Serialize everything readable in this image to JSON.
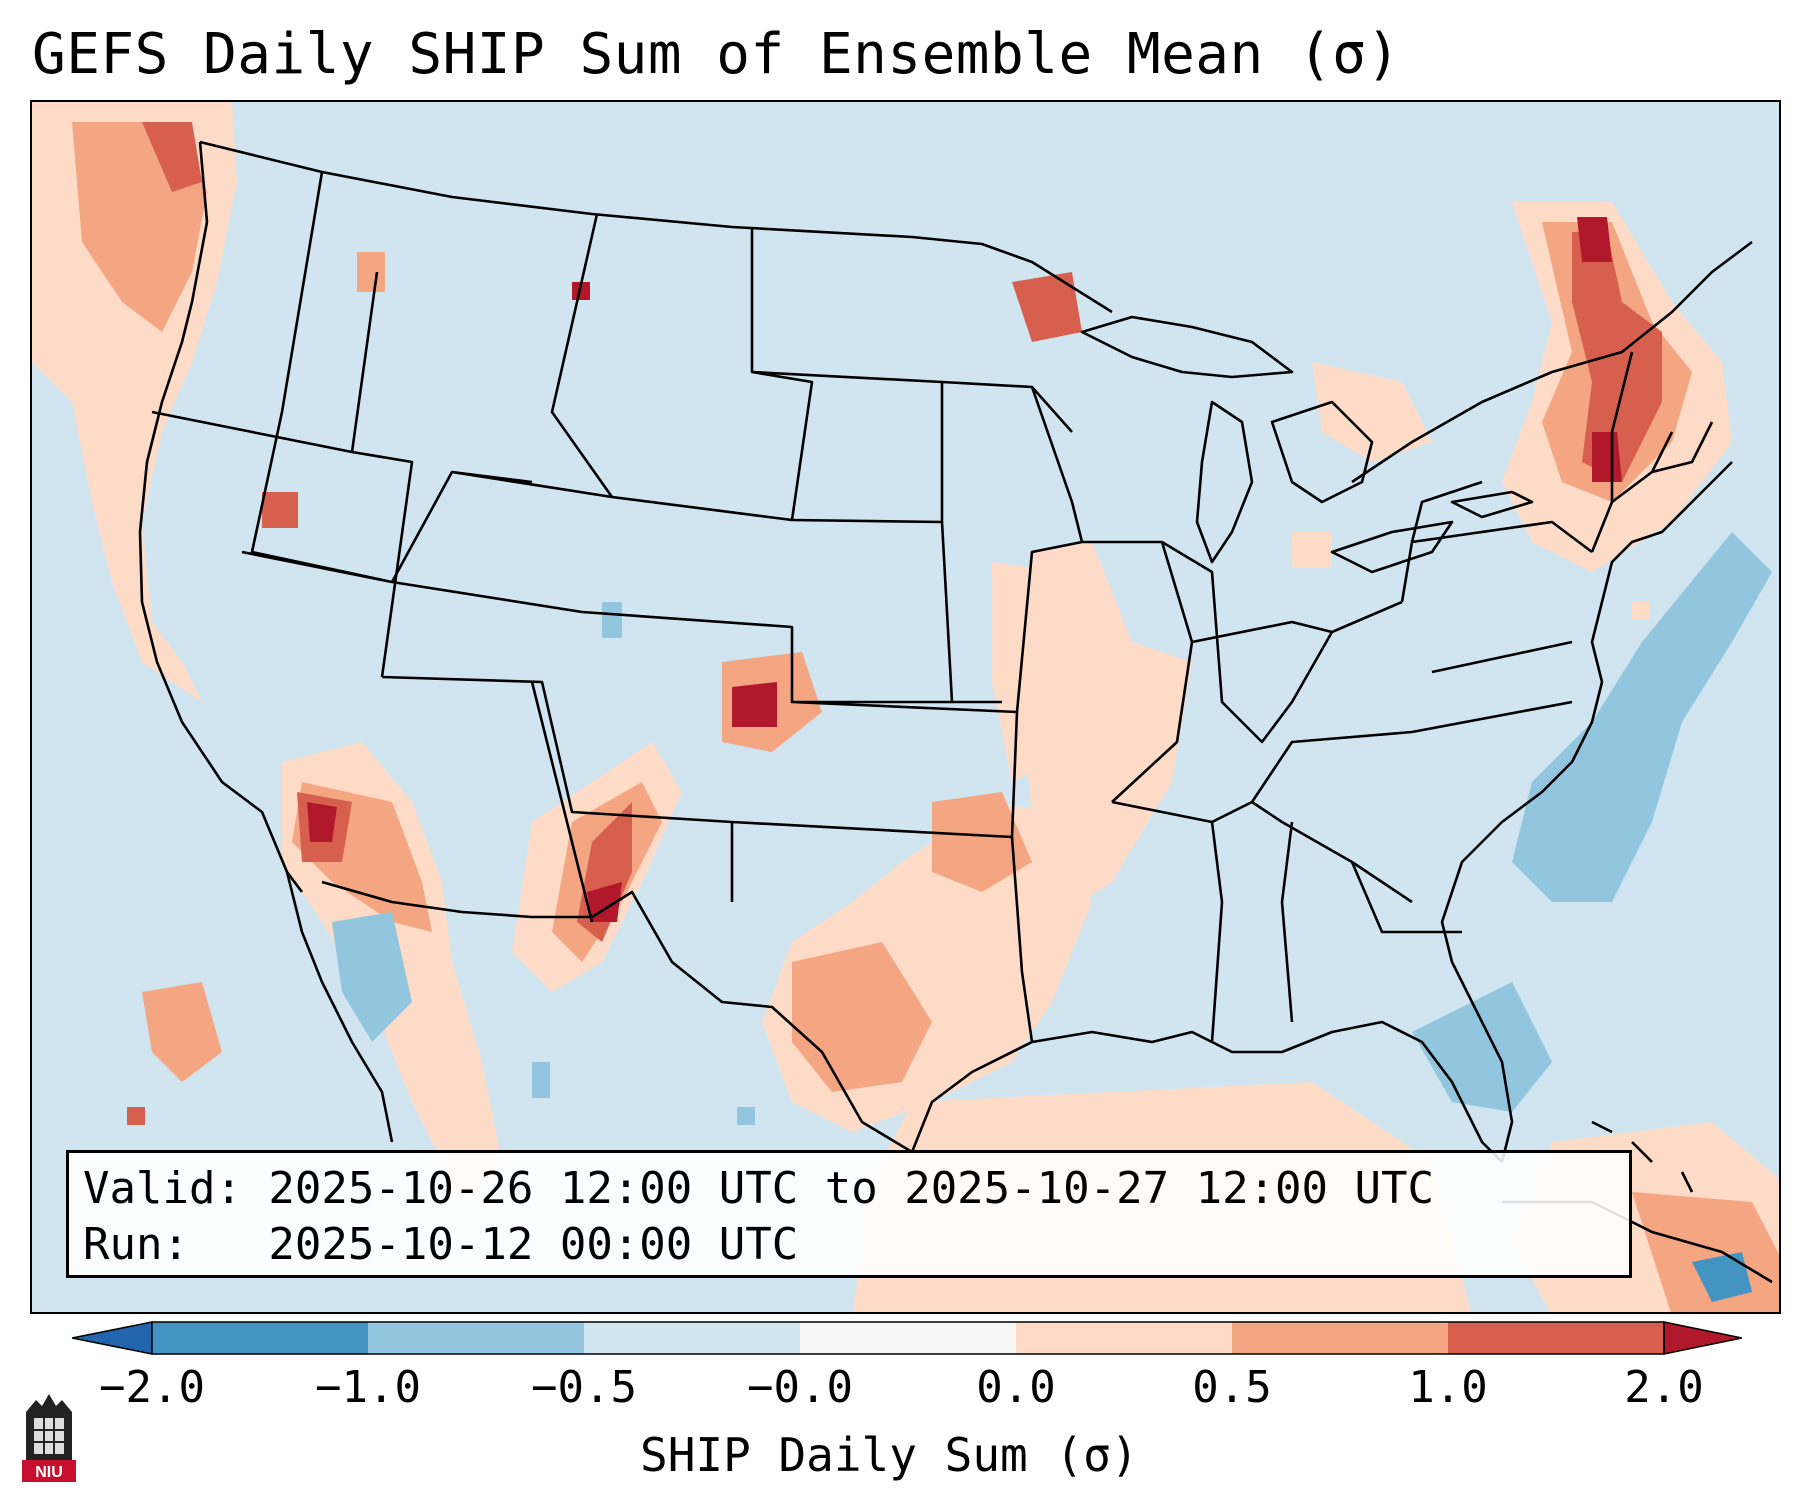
{
  "title": "GEFS Daily SHIP Sum of Ensemble Mean (σ)",
  "info": {
    "valid_line": "Valid: 2025-10-26 12:00 UTC to 2025-10-27 12:00 UTC",
    "run_line": "Run:   2025-10-12 00:00 UTC"
  },
  "colorbar": {
    "label": "SHIP Daily Sum (σ)",
    "ticks": [
      "−2.0",
      "−1.0",
      "−0.5",
      "−0.0",
      "0.0",
      "0.5",
      "1.0",
      "2.0"
    ],
    "colors": [
      "#2166ac",
      "#4393c3",
      "#92c5de",
      "#d1e5f0",
      "#f7f7f7",
      "#fddbc7",
      "#f4a582",
      "#d6604d",
      "#b2182b"
    ]
  },
  "logo": {
    "text": "NIU",
    "color": "#c8102e"
  },
  "map": {
    "projection": "Lambert Conformal — CONUS",
    "background_color": "#d1e5f0",
    "features": [
      "coastlines",
      "state-borders",
      "country-borders",
      "great-lakes"
    ]
  }
}
